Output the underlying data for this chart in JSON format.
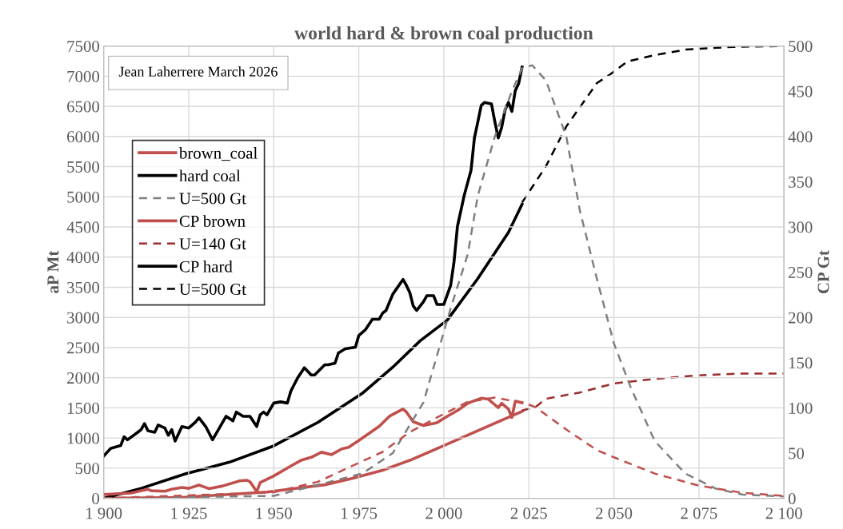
{
  "chart_data": {
    "type": "line",
    "title": "world hard & brown coal production",
    "ylabel": "aP Mt",
    "y2label": "CP Gt",
    "annotations": [
      "Jean Laherrere March 2026"
    ],
    "xlim": [
      1900,
      2100
    ],
    "xticks": [
      {
        "value": 1900,
        "label": "1 900"
      },
      {
        "value": 1925,
        "label": "1 925"
      },
      {
        "value": 1950,
        "label": "1 950"
      },
      {
        "value": 1975,
        "label": "1 975"
      },
      {
        "value": 2000,
        "label": "2 000"
      },
      {
        "value": 2025,
        "label": "2 025"
      },
      {
        "value": 2050,
        "label": "2 050"
      },
      {
        "value": 2075,
        "label": "2 075"
      },
      {
        "value": 2100,
        "label": "2 100"
      }
    ],
    "ylim": [
      0,
      7500
    ],
    "yticks": [
      0,
      500,
      1000,
      1500,
      2000,
      2500,
      3000,
      3500,
      4000,
      4500,
      5000,
      5500,
      6000,
      6500,
      7000,
      7500
    ],
    "y2lim": [
      0,
      500
    ],
    "y2ticks": [
      0,
      50,
      100,
      150,
      200,
      250,
      300,
      350,
      400,
      450,
      500
    ],
    "grid": true,
    "legend": "top left",
    "marker": "none",
    "series": [
      {
        "name": "brown_coal",
        "color": "#c0504d",
        "line_style": "solid",
        "x": [
          1900,
          1908,
          1913,
          1914,
          1918,
          1920,
          1923,
          1925,
          1928,
          1931,
          1935,
          1940,
          1942,
          1943,
          1945,
          1946,
          1950,
          1955,
          1958,
          1961,
          1964,
          1967,
          1970,
          1972,
          1975,
          1981,
          1984,
          1988,
          1989,
          1991,
          1994,
          1998,
          2001,
          2004,
          2007,
          2009,
          2011,
          2013,
          2016,
          2017,
          2019,
          2020,
          2021,
          2023
        ],
        "values": [
          62,
          88,
          150,
          125,
          118,
          150,
          180,
          165,
          220,
          160,
          205,
          290,
          300,
          275,
          110,
          260,
          370,
          535,
          630,
          680,
          765,
          725,
          820,
          845,
          960,
          1195,
          1360,
          1480,
          1430,
          1270,
          1207,
          1255,
          1360,
          1455,
          1575,
          1620,
          1660,
          1645,
          1505,
          1575,
          1480,
          1340,
          1610,
          1585
        ]
      },
      {
        "name": "hard coal",
        "color": "#000000",
        "line_style": "solid",
        "x": [
          1900,
          1902,
          1905,
          1906,
          1907,
          1910,
          1911,
          1912,
          1913,
          1915,
          1916,
          1918,
          1919,
          1920,
          1921,
          1923,
          1925,
          1927,
          1928,
          1930,
          1932,
          1934,
          1936,
          1938,
          1939,
          1941,
          1943,
          1945,
          1946,
          1947,
          1948,
          1950,
          1952,
          1954,
          1955,
          1957,
          1959,
          1961,
          1962,
          1965,
          1966,
          1968,
          1969,
          1971,
          1974,
          1975,
          1977,
          1979,
          1981,
          1982,
          1983,
          1985,
          1988,
          1989,
          1990,
          1991,
          1992,
          1994,
          1995,
          1997,
          1998,
          2000,
          2002,
          2003,
          2004,
          2006,
          2008,
          2009,
          2010,
          2011,
          2012,
          2014,
          2015,
          2016,
          2017,
          2018,
          2019,
          2020,
          2021,
          2022,
          2023
        ],
        "values": [
          700,
          825,
          875,
          1020,
          970,
          1095,
          1140,
          1240,
          1120,
          1095,
          1215,
          1165,
          1045,
          1140,
          950,
          1190,
          1165,
          1265,
          1335,
          1190,
          970,
          1165,
          1360,
          1285,
          1430,
          1360,
          1360,
          1190,
          1385,
          1430,
          1385,
          1580,
          1600,
          1580,
          1775,
          1995,
          2165,
          2045,
          2045,
          2215,
          2215,
          2240,
          2410,
          2480,
          2505,
          2700,
          2800,
          2970,
          2970,
          3070,
          3115,
          3385,
          3630,
          3530,
          3410,
          3190,
          3115,
          3260,
          3360,
          3360,
          3215,
          3215,
          3530,
          3925,
          4510,
          5025,
          5440,
          5980,
          6245,
          6515,
          6565,
          6540,
          6245,
          5975,
          6150,
          6440,
          6565,
          6415,
          6760,
          6880,
          7150
        ]
      },
      {
        "name": "U=500 Gt",
        "color": "#808080",
        "line_style": "dashed",
        "x": [
          1900,
          1950,
          1976,
          1985,
          1994,
          2002,
          2007,
          2010,
          2015,
          2020,
          2023,
          2026,
          2030,
          2036,
          2040,
          2045,
          2050,
          2055,
          2062,
          2071,
          2080,
          2088,
          2100
        ],
        "values": [
          0,
          40,
          410,
          750,
          1590,
          3150,
          4040,
          5020,
          6000,
          6750,
          7130,
          7180,
          6930,
          6000,
          4770,
          3640,
          2570,
          1830,
          950,
          410,
          160,
          60,
          30
        ]
      },
      {
        "name": "CP brown",
        "color": "#c0504d",
        "line_style": "solid",
        "axis": "y2",
        "x": [
          1900,
          1923,
          1948,
          1965,
          1973,
          1982,
          1990,
          1998,
          2015,
          2023
        ],
        "values": [
          0,
          1,
          7,
          15,
          22,
          31,
          42,
          55,
          83,
          96
        ]
      },
      {
        "name": "U=140 Gt",
        "color": "#9b2d2d",
        "line_style": "dashed",
        "axis": "y2",
        "x": [
          2023,
          2027,
          2030,
          2040,
          2050,
          2062,
          2075,
          2088,
          2100
        ],
        "values": [
          97,
          101,
          110,
          117,
          127,
          132,
          136,
          138,
          138
        ]
      },
      {
        "color": "#c0504d",
        "line_style": "dashed",
        "x": [
          1900,
          1950,
          1963,
          1973,
          1982,
          1990,
          1998,
          2007,
          2015,
          2024,
          2027,
          2036,
          2045,
          2050,
          2062,
          2075,
          2088,
          2100
        ],
        "values": [
          0,
          100,
          275,
          535,
          770,
          1100,
          1340,
          1600,
          1670,
          1575,
          1510,
          1140,
          800,
          680,
          410,
          210,
          90,
          40
        ]
      },
      {
        "name": "CP hard",
        "color": "#000000",
        "line_style": "solid",
        "axis": "y2",
        "x": [
          1900,
          1911,
          1924,
          1937,
          1950,
          1963,
          1976,
          1985,
          1993,
          2001,
          2010,
          2019,
          2023
        ],
        "values": [
          0,
          11,
          27,
          40,
          58,
          84,
          116,
          145,
          174,
          197,
          243,
          294,
          325
        ]
      },
      {
        "name": "U=500 Gt",
        "color": "#000000",
        "line_style": "dashed",
        "axis": "y2",
        "x": [
          2023,
          2030,
          2036,
          2045,
          2049,
          2054,
          2062,
          2071,
          2085,
          2100
        ],
        "values": [
          327,
          367,
          411,
          459,
          469,
          483,
          490,
          496,
          499,
          500
        ]
      }
    ]
  }
}
